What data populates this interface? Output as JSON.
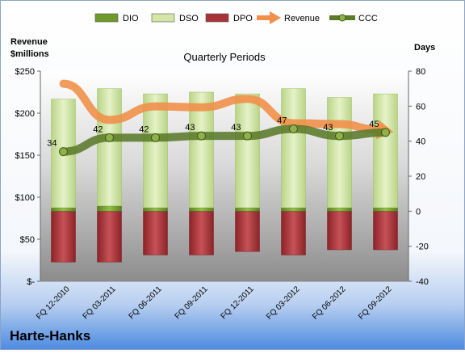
{
  "chart_data": {
    "type": "bar",
    "title": "Quarterly Periods",
    "company": "Harte-Hanks",
    "left_axis_label_lines": [
      "Revenue",
      "$millions"
    ],
    "right_axis_label": "Days",
    "left_axis": {
      "min": 0,
      "max": 250,
      "ticks": [
        0,
        50,
        100,
        150,
        200,
        250
      ],
      "tick_labels": [
        "$-",
        "$50",
        "$100",
        "$150",
        "$200",
        "$250"
      ]
    },
    "right_axis": {
      "min": -40,
      "max": 80,
      "ticks": [
        -40,
        -20,
        0,
        20,
        40,
        60,
        80
      ],
      "tick_labels": [
        "-40",
        "-20",
        "0",
        "20",
        "40",
        "60",
        "80"
      ]
    },
    "categories": [
      "FQ 12-2010",
      "FQ 03-2011",
      "FQ 06-2011",
      "FQ 09-2011",
      "FQ 12-2011",
      "FQ 03-2012",
      "FQ 06-2012",
      "FQ 09-2012"
    ],
    "legend": {
      "placement": "top",
      "items": [
        {
          "label": "DIO",
          "kind": "bar",
          "color": "#6f9a2b"
        },
        {
          "label": "DSO",
          "kind": "bar",
          "color": "#d3e6a6"
        },
        {
          "label": "DPO",
          "kind": "bar",
          "color": "#a8343a"
        },
        {
          "label": "Revenue",
          "kind": "arrow",
          "color": "#f0904a"
        },
        {
          "label": "CCC",
          "kind": "line-marker",
          "color": "#5b7a2a"
        }
      ]
    },
    "series": [
      {
        "name": "DIO",
        "axis": "right",
        "values": [
          2,
          3,
          2,
          2,
          2,
          2,
          2,
          2
        ]
      },
      {
        "name": "DSO",
        "axis": "right",
        "values": [
          62,
          67,
          65,
          66,
          65,
          68,
          63,
          65
        ]
      },
      {
        "name": "DPO",
        "axis": "right",
        "values": [
          -29,
          -29,
          -25,
          -25,
          -23,
          -25,
          -22,
          -22
        ]
      },
      {
        "name": "Revenue",
        "axis": "left",
        "values": [
          235,
          192,
          208,
          207,
          217,
          188,
          187,
          179
        ]
      },
      {
        "name": "CCC",
        "axis": "right",
        "values": [
          34,
          42,
          42,
          43,
          43,
          47,
          43,
          45
        ],
        "labels": [
          "34",
          "42",
          "42",
          "43",
          "43",
          "47",
          "43",
          "45"
        ]
      }
    ],
    "colors": {
      "dio": "#6f9a2b",
      "dso": "#d3e6a6",
      "dpo": "#a8343a",
      "revenue": "#f0904a",
      "ccc": "#5b7a2a",
      "marker": "#8fb04a"
    },
    "grid": false
  }
}
